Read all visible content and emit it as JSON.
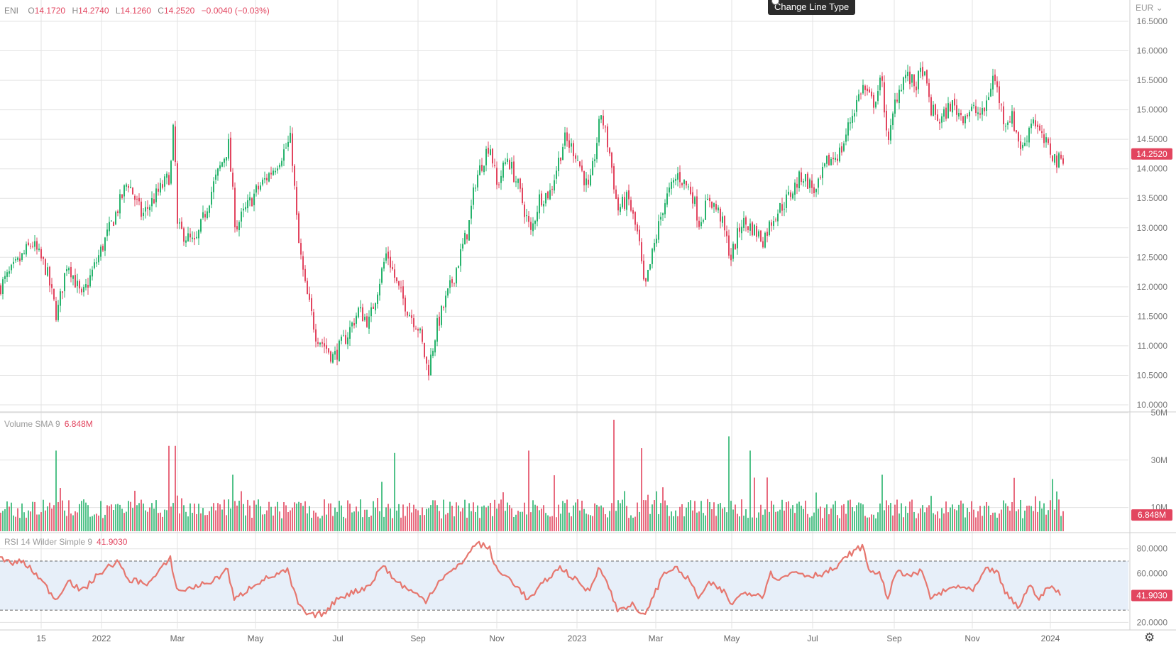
{
  "header": {
    "symbol": "ENI",
    "open_label": "O",
    "open": "14.1720",
    "high_label": "H",
    "high": "14.2740",
    "low_label": "L",
    "low": "14.1260",
    "close_label": "C",
    "close": "14.2520",
    "change": "−0.0040 (−0.03%)"
  },
  "currency": "EUR",
  "tooltip": "Change Line Type",
  "colors": {
    "up": "#26b36c",
    "down": "#e2455f",
    "rsi": "#e6776f",
    "rsi_band": "#e7eff9",
    "grid": "#e3e3e3"
  },
  "chart_data": [
    {
      "type": "candlestick",
      "title": "ENI",
      "x_ticks": [
        "15",
        "2022",
        "Mar",
        "May",
        "Jul",
        "Sep",
        "Nov",
        "2023",
        "Mar",
        "May",
        "Jul",
        "Sep",
        "Nov",
        "2024"
      ],
      "y_ticks": [
        "16.5000",
        "16.0000",
        "15.5000",
        "15.0000",
        "14.5000",
        "14.0000",
        "13.5000",
        "13.0000",
        "12.5000",
        "12.0000",
        "11.5000",
        "11.0000",
        "10.5000",
        "10.0000"
      ],
      "ylim": [
        10.0,
        16.5
      ],
      "last_value": "14.2520",
      "anchors": [
        [
          0,
          12.0
        ],
        [
          25,
          12.4
        ],
        [
          45,
          12.75
        ],
        [
          65,
          12.3
        ],
        [
          80,
          11.5
        ],
        [
          95,
          12.45
        ],
        [
          115,
          11.8
        ],
        [
          135,
          12.4
        ],
        [
          165,
          13.3
        ],
        [
          180,
          13.8
        ],
        [
          200,
          13.2
        ],
        [
          240,
          13.9
        ],
        [
          245,
          14.8
        ],
        [
          250,
          13.0
        ],
        [
          275,
          12.7
        ],
        [
          300,
          13.7
        ],
        [
          322,
          14.4
        ],
        [
          332,
          13.0
        ],
        [
          360,
          13.6
        ],
        [
          385,
          14.0
        ],
        [
          410,
          14.5
        ],
        [
          420,
          12.8
        ],
        [
          430,
          12.0
        ],
        [
          445,
          11.2
        ],
        [
          470,
          10.8
        ],
        [
          490,
          11.2
        ],
        [
          505,
          11.6
        ],
        [
          520,
          11.4
        ],
        [
          545,
          12.6
        ],
        [
          560,
          12.0
        ],
        [
          575,
          11.6
        ],
        [
          590,
          11.3
        ],
        [
          603,
          10.55
        ],
        [
          615,
          11.3
        ],
        [
          640,
          12.2
        ],
        [
          660,
          13.0
        ],
        [
          670,
          13.8
        ],
        [
          690,
          14.45
        ],
        [
          700,
          13.7
        ],
        [
          715,
          14.2
        ],
        [
          730,
          13.7
        ],
        [
          748,
          12.9
        ],
        [
          760,
          13.5
        ],
        [
          775,
          13.6
        ],
        [
          795,
          14.5
        ],
        [
          810,
          14.3
        ],
        [
          830,
          13.6
        ],
        [
          847,
          14.95
        ],
        [
          860,
          14.2
        ],
        [
          870,
          13.3
        ],
        [
          885,
          13.5
        ],
        [
          900,
          12.8
        ],
        [
          908,
          11.9
        ],
        [
          920,
          12.6
        ],
        [
          935,
          13.4
        ],
        [
          955,
          13.9
        ],
        [
          975,
          13.6
        ],
        [
          985,
          13.1
        ],
        [
          1000,
          13.5
        ],
        [
          1015,
          13.2
        ],
        [
          1030,
          12.5
        ],
        [
          1045,
          13.1
        ],
        [
          1060,
          13.0
        ],
        [
          1075,
          12.8
        ],
        [
          1090,
          13.2
        ],
        [
          1110,
          13.5
        ],
        [
          1130,
          13.9
        ],
        [
          1150,
          13.6
        ],
        [
          1165,
          14.1
        ],
        [
          1185,
          14.3
        ],
        [
          1200,
          14.9
        ],
        [
          1215,
          15.4
        ],
        [
          1230,
          15.1
        ],
        [
          1242,
          15.5
        ],
        [
          1252,
          14.4
        ],
        [
          1262,
          15.2
        ],
        [
          1275,
          15.6
        ],
        [
          1290,
          15.4
        ],
        [
          1300,
          15.7
        ],
        [
          1312,
          15.0
        ],
        [
          1325,
          14.8
        ],
        [
          1340,
          15.1
        ],
        [
          1355,
          14.9
        ],
        [
          1370,
          15.0
        ],
        [
          1385,
          14.9
        ],
        [
          1400,
          15.6
        ],
        [
          1415,
          14.8
        ],
        [
          1425,
          14.9
        ],
        [
          1440,
          14.3
        ],
        [
          1455,
          14.9
        ],
        [
          1468,
          14.5
        ],
        [
          1480,
          14.3
        ],
        [
          1490,
          14.1
        ],
        [
          1500,
          14.25
        ]
      ],
      "series": [
        {
          "name": "ENI"
        }
      ]
    },
    {
      "type": "bar",
      "title": "Volume SMA 9",
      "last_value": "6.848M",
      "y_ticks": [
        "50M",
        "30M",
        "10M"
      ],
      "ylim": [
        0,
        50
      ],
      "base_level": 9,
      "spikes": [
        [
          80,
          34
        ],
        [
          237,
          36
        ],
        [
          247,
          36
        ],
        [
          555,
          33
        ],
        [
          745,
          34
        ],
        [
          864,
          47
        ],
        [
          905,
          35
        ],
        [
          1027,
          40
        ],
        [
          1058,
          34
        ],
        [
          1482,
          22
        ]
      ]
    },
    {
      "type": "line",
      "title": "RSI 14 Wilder Simple 9",
      "last_value": "41.9030",
      "y_ticks": [
        "80.0000",
        "60.0000",
        "40.0000",
        "20.0000"
      ],
      "ylim": [
        15,
        92
      ],
      "band": [
        30,
        70
      ],
      "anchors": [
        [
          0,
          73
        ],
        [
          15,
          68
        ],
        [
          30,
          70
        ],
        [
          50,
          60
        ],
        [
          80,
          38
        ],
        [
          95,
          55
        ],
        [
          115,
          45
        ],
        [
          140,
          60
        ],
        [
          165,
          70
        ],
        [
          180,
          55
        ],
        [
          210,
          52
        ],
        [
          240,
          72
        ],
        [
          250,
          45
        ],
        [
          280,
          50
        ],
        [
          305,
          55
        ],
        [
          320,
          65
        ],
        [
          330,
          38
        ],
        [
          360,
          52
        ],
        [
          385,
          58
        ],
        [
          405,
          62
        ],
        [
          420,
          35
        ],
        [
          435,
          25
        ],
        [
          460,
          28
        ],
        [
          475,
          40
        ],
        [
          500,
          45
        ],
        [
          520,
          50
        ],
        [
          540,
          67
        ],
        [
          555,
          55
        ],
        [
          580,
          45
        ],
        [
          600,
          38
        ],
        [
          620,
          55
        ],
        [
          645,
          65
        ],
        [
          672,
          85
        ],
        [
          690,
          80
        ],
        [
          700,
          62
        ],
        [
          720,
          55
        ],
        [
          745,
          38
        ],
        [
          770,
          55
        ],
        [
          790,
          65
        ],
        [
          810,
          55
        ],
        [
          830,
          45
        ],
        [
          845,
          67
        ],
        [
          860,
          45
        ],
        [
          870,
          30
        ],
        [
          890,
          35
        ],
        [
          905,
          24
        ],
        [
          920,
          40
        ],
        [
          935,
          60
        ],
        [
          950,
          65
        ],
        [
          970,
          55
        ],
        [
          985,
          40
        ],
        [
          1000,
          52
        ],
        [
          1020,
          45
        ],
        [
          1030,
          35
        ],
        [
          1050,
          45
        ],
        [
          1075,
          42
        ],
        [
          1085,
          60
        ],
        [
          1100,
          55
        ],
        [
          1120,
          62
        ],
        [
          1140,
          58
        ],
        [
          1160,
          60
        ],
        [
          1180,
          65
        ],
        [
          1195,
          75
        ],
        [
          1215,
          82
        ],
        [
          1225,
          62
        ],
        [
          1240,
          60
        ],
        [
          1250,
          40
        ],
        [
          1265,
          62
        ],
        [
          1285,
          58
        ],
        [
          1300,
          62
        ],
        [
          1310,
          40
        ],
        [
          1330,
          45
        ],
        [
          1350,
          50
        ],
        [
          1370,
          45
        ],
        [
          1390,
          63
        ],
        [
          1405,
          62
        ],
        [
          1415,
          45
        ],
        [
          1435,
          32
        ],
        [
          1450,
          50
        ],
        [
          1465,
          40
        ],
        [
          1480,
          50
        ],
        [
          1495,
          42
        ]
      ]
    }
  ]
}
